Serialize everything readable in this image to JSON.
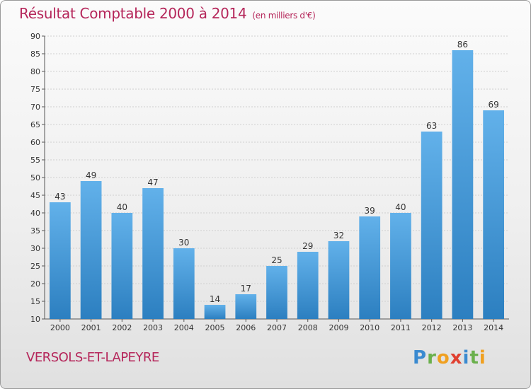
{
  "header": {
    "title": "Résultat Comptable 2000 à 2014",
    "subtitle": "(en milliers d'€)"
  },
  "footer": {
    "city": "VERSOLS-ET-LAPEYRE",
    "logo": "Proxiti"
  },
  "colors": {
    "bar_top": "#62b1ea",
    "bar_bottom": "#2c7fc0",
    "title": "#b5265a",
    "grid": "#cfcfcf"
  },
  "chart_data": {
    "type": "bar",
    "title": "Résultat Comptable 2000 à 2014",
    "subtitle": "(en milliers d'€)",
    "categories": [
      "2000",
      "2001",
      "2002",
      "2003",
      "2004",
      "2005",
      "2006",
      "2007",
      "2008",
      "2009",
      "2010",
      "2011",
      "2012",
      "2013",
      "2014"
    ],
    "values": [
      43,
      49,
      40,
      47,
      30,
      14,
      17,
      25,
      29,
      32,
      39,
      40,
      63,
      86,
      69
    ],
    "yticks": [
      "10",
      "15",
      "20",
      "25",
      "30",
      "35",
      "40",
      "45",
      "50",
      "55",
      "60",
      "65",
      "70",
      "75",
      "80",
      "85",
      "90"
    ],
    "ylim": [
      10,
      90
    ],
    "grid": true,
    "xlabel": "",
    "ylabel": ""
  }
}
